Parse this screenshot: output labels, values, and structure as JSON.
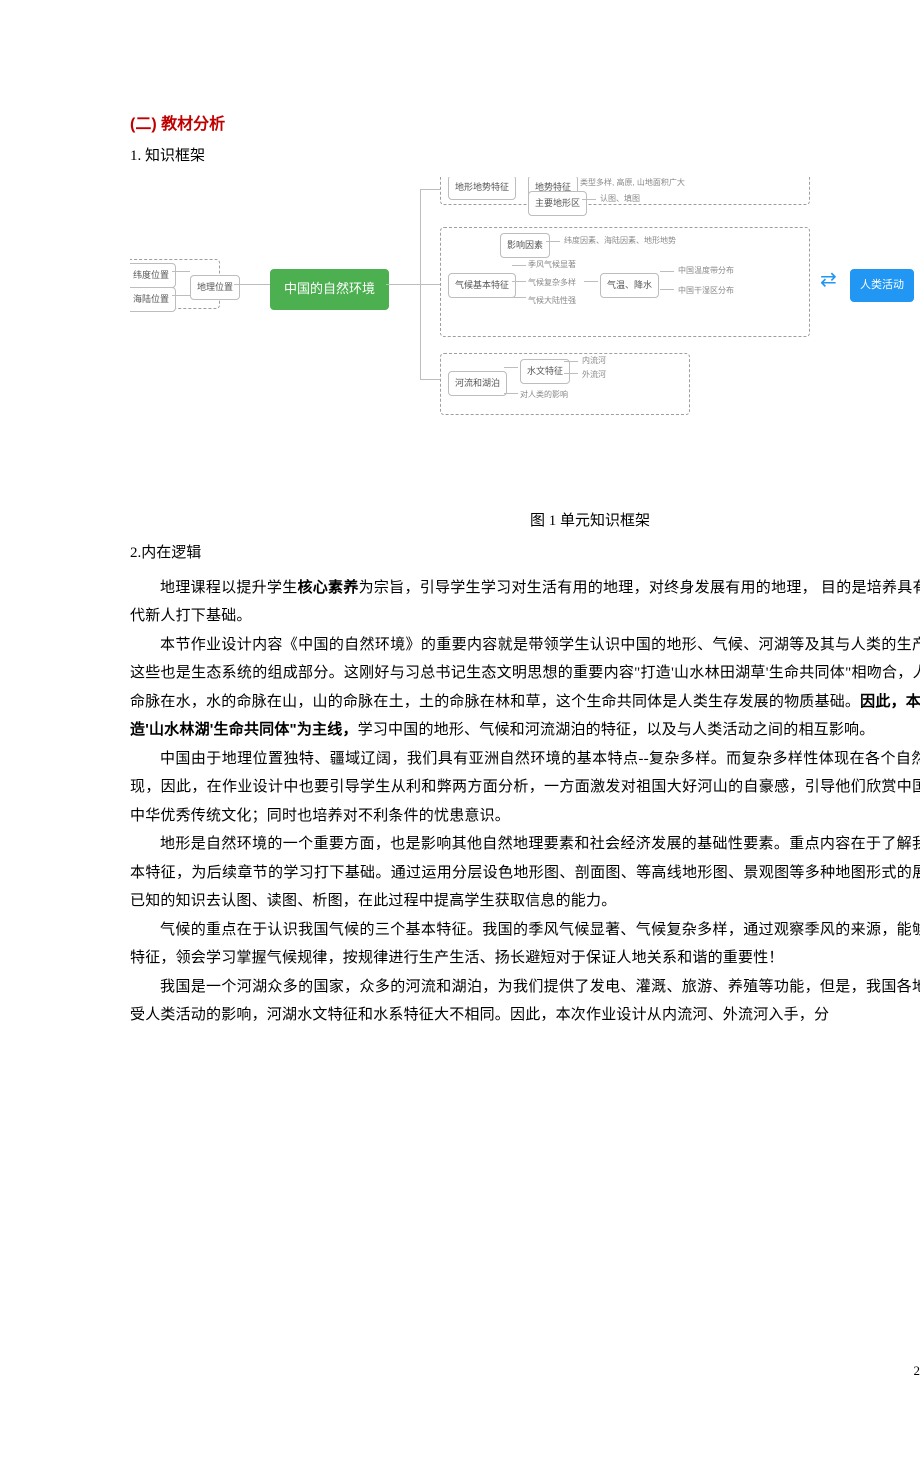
{
  "heading2": "(二) 教材分析",
  "sub1": "1. 知识框架",
  "figCaption": "图 1  单元知识框架",
  "sub2": "2.内在逻辑",
  "diagram": {
    "main": "中国的自然环境",
    "humanActivity": "人类活动",
    "left": {
      "group": "地理位置",
      "items": [
        "纬度位置",
        "海陆位置"
      ]
    },
    "topRow": {
      "a": "地形地势特征",
      "b": "地势特征",
      "c": "类型多样, 高原, 山地面积广大",
      "d": "主要地形区",
      "e": "认图、填图"
    },
    "climate": {
      "title": "气候基本特征",
      "factors": "影响因素",
      "factorsDetail": "纬度因素、海陆因素、地形地势",
      "a": "季风气候显著",
      "b": "气候复杂多样",
      "c": "气候大陆性强",
      "mid": "气温、降水",
      "r1": "中国温度带分布",
      "r2": "中国干湿区分布"
    },
    "rivers": {
      "title": "河流和湖泊",
      "a": "水文特征",
      "a1": "内流河",
      "a2": "外流河",
      "b": "对人类的影响"
    }
  },
  "paragraphs": [
    {
      "html": "地理课程以提升学生<b>核心素养</b>为宗旨，引导学生学习对生活有用的地理，对终身发展有用的地理， 目的是培养具有<b>生态文明理念</b>的时代新人打下基础。"
    },
    {
      "html": "本节作业设计内容《中国的自然环境》的重要内容就是带领学生认识中国的地形、气候、河湖等及其与人类的生产生活之间的关系，这些也是生态系统的组成部分。这刚好与习总书记生态文明思想的重要内容\"打造'山水林田湖草'生命共同体\"相吻合，人的命脉在田，田的命脉在水，水的命脉在山，山的命脉在土，土的命脉在林和草，这个生命共同体是人类生存发展的物质基础。<b>因此，本节作业设计就以\"打造'山水林湖'生命共同体\"为主线，</b>学习中国的地形、气候和河流湖泊的特征，以及与人类活动之间的相互影响。"
    },
    {
      "html": "中国由于地理位置独特、疆域辽阔，我们具有亚洲自然环境的基本特点--复杂多样。而复杂多样性体现在各个自然要素上又是各有表现，因此，在作业设计中也要引导学生从利和弊两方面分析，一方面激发对祖国大好河山的自豪感，引导他们欣赏中国的自然景观，认同中华优秀传统文化；同时也培养对不利条件的忧患意识。"
    },
    {
      "html": "地形是自然环境的一个重要方面，也是影响其他自然地理要素和社会经济发展的基础性要素。重点内容在于了解我国地势、地形的基本特征，为后续章节的学习打下基础。通过运用分层设色地形图、剖面图、等高线地形图、景观图等多种地图形式的展示，培养学生运用已知的知识去认图、读图、析图，在此过程中提高学生获取信息的能力。"
    },
    {
      "html": "气候的重点在于认识我国气候的三个基本特征。我国的季风气候显著、气候复杂多样，通过观察季风的来源，能够推断某季节的气候特征，领会学习掌握气候规律，按规律进行生产生活、扬长避短对于保证人地关系和谐的重要性！"
    },
    {
      "html": "我国是一个河湖众多的国家，众多的河流和湖泊，为我们提供了发电、灌溉、旅游、养殖等功能，但是，我国各地自然环境的差异和受人类活动的影响，河湖水文特征和水系特征大不相同。因此，本次作业设计从内流河、外流河入手，分"
    }
  ],
  "pageNum": "2"
}
